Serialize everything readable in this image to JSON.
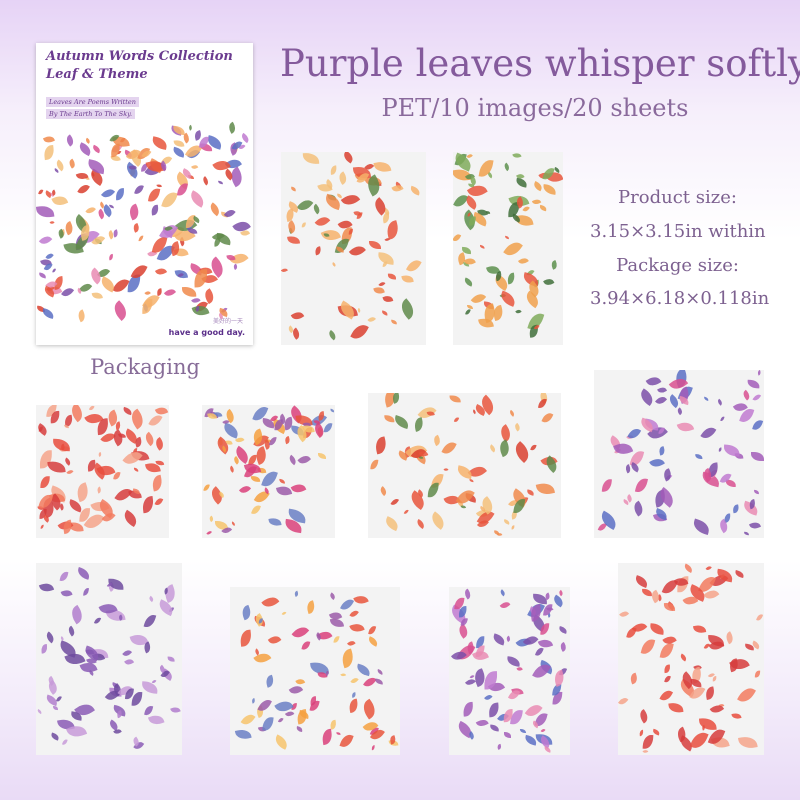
{
  "title": "Purple leaves whisper softly",
  "subtitle": "PET/10 images/20 sheets",
  "specs": {
    "product_label": "Product size:",
    "product_value": "3.15×3.15in within",
    "package_label": "Package size:",
    "package_value": "3.94×6.18×0.118in"
  },
  "packaging": {
    "label": "Packaging",
    "title_line1": "Autumn Words Collection",
    "title_line2": "Leaf & Theme",
    "tagline1": "Leaves Are Poems Written",
    "tagline2": "By The Earth To The Sky.",
    "chinese": "美好的一天",
    "slogan": "have a good day."
  },
  "colors": {
    "title": "#845a9c",
    "accent": "#6b3b8f"
  }
}
